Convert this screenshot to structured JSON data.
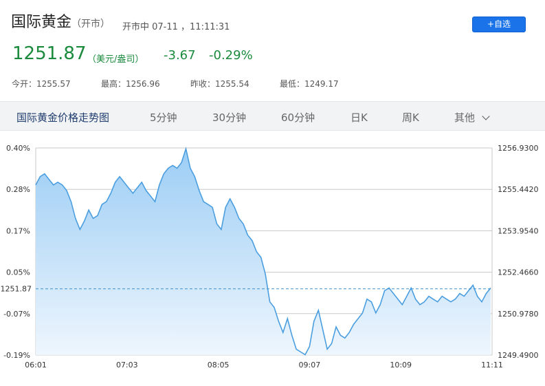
{
  "header": {
    "title": "国际黄金",
    "title_paren": "（开市）",
    "status": "开市中 07-11 ，11:11:31",
    "add_button": "+自选"
  },
  "quote": {
    "price": "1251.87",
    "unit": "（美元/盎司）",
    "change": "-3.67",
    "change_pct": "-0.29%"
  },
  "stats": {
    "open": "今开：1255.57",
    "high": "最高：1256.96",
    "prev_close": "昨收：1255.54",
    "low": "最低：1249.17"
  },
  "tabs": [
    "国际黄金价格走势图",
    "5分钟",
    "30分钟",
    "60分钟",
    "日K",
    "周K",
    "其他"
  ],
  "colors": {
    "line": "#4a9ee0",
    "fill_top": "#9ccdf5",
    "fill_bottom": "#eef6fd",
    "up_down_green": "#1a8a3c",
    "accent_blue": "#1a73e8"
  },
  "chart_data": {
    "type": "area",
    "y_left_labels": [
      "0.40%",
      "0.28%",
      "0.17%",
      "0.05%",
      "-0.07%",
      "-0.19%"
    ],
    "y_right_labels": [
      "1256.9300",
      "1255.4420",
      "1253.9540",
      "1252.4660",
      "1250.9780",
      "1249.4900"
    ],
    "x_labels": [
      "06:01",
      "07:03",
      "08:05",
      "09:07",
      "10:09",
      "11:11"
    ],
    "ylim": [
      1249.49,
      1256.93
    ],
    "x_range_min": [
      0,
      310
    ],
    "current_price": 1251.87,
    "current_price_label": "1251.87",
    "grid": true,
    "x": [
      0,
      3,
      6,
      9,
      12,
      15,
      18,
      21,
      24,
      27,
      30,
      33,
      36,
      39,
      42,
      45,
      48,
      51,
      54,
      57,
      60,
      63,
      66,
      69,
      72,
      75,
      78,
      81,
      84,
      87,
      90,
      93,
      96,
      99,
      102,
      105,
      108,
      111,
      114,
      117,
      120,
      123,
      126,
      129,
      132,
      135,
      138,
      141,
      144,
      147,
      150,
      153,
      156,
      159,
      162,
      165,
      168,
      171,
      174,
      177,
      180,
      183,
      186,
      189,
      192,
      195,
      198,
      201,
      204,
      207,
      210,
      213,
      216,
      219,
      222,
      225,
      228,
      231,
      234,
      237,
      240,
      243,
      246,
      249,
      252,
      255,
      258,
      261,
      264,
      267,
      270,
      273,
      276,
      279,
      282,
      285,
      288,
      291,
      294,
      297,
      300,
      303,
      306,
      309
    ],
    "y": [
      1255.6,
      1255.9,
      1256.0,
      1255.8,
      1255.6,
      1255.7,
      1255.6,
      1255.4,
      1255.0,
      1254.4,
      1254.0,
      1254.3,
      1254.7,
      1254.4,
      1254.5,
      1254.9,
      1255.0,
      1255.3,
      1255.7,
      1255.9,
      1255.7,
      1255.5,
      1255.3,
      1255.5,
      1255.7,
      1255.4,
      1255.2,
      1255.0,
      1255.6,
      1256.0,
      1256.2,
      1256.3,
      1256.2,
      1256.4,
      1256.9,
      1256.2,
      1255.9,
      1255.4,
      1255.0,
      1254.9,
      1254.8,
      1254.2,
      1254.0,
      1254.8,
      1255.1,
      1254.8,
      1254.4,
      1254.2,
      1253.8,
      1253.6,
      1253.2,
      1253.0,
      1252.4,
      1251.4,
      1251.2,
      1250.7,
      1250.3,
      1250.8,
      1250.2,
      1249.7,
      1249.6,
      1249.5,
      1249.8,
      1250.7,
      1251.1,
      1250.4,
      1249.7,
      1249.9,
      1250.5,
      1250.2,
      1250.1,
      1250.3,
      1250.6,
      1250.8,
      1251.0,
      1251.5,
      1251.4,
      1251.0,
      1251.3,
      1251.8,
      1251.9,
      1251.7,
      1251.5,
      1251.3,
      1251.6,
      1251.9,
      1251.5,
      1251.3,
      1251.4,
      1251.6,
      1251.5,
      1251.4,
      1251.6,
      1251.5,
      1251.4,
      1251.5,
      1251.7,
      1251.6,
      1251.8,
      1252.0,
      1251.6,
      1251.4,
      1251.7,
      1251.9
    ]
  }
}
